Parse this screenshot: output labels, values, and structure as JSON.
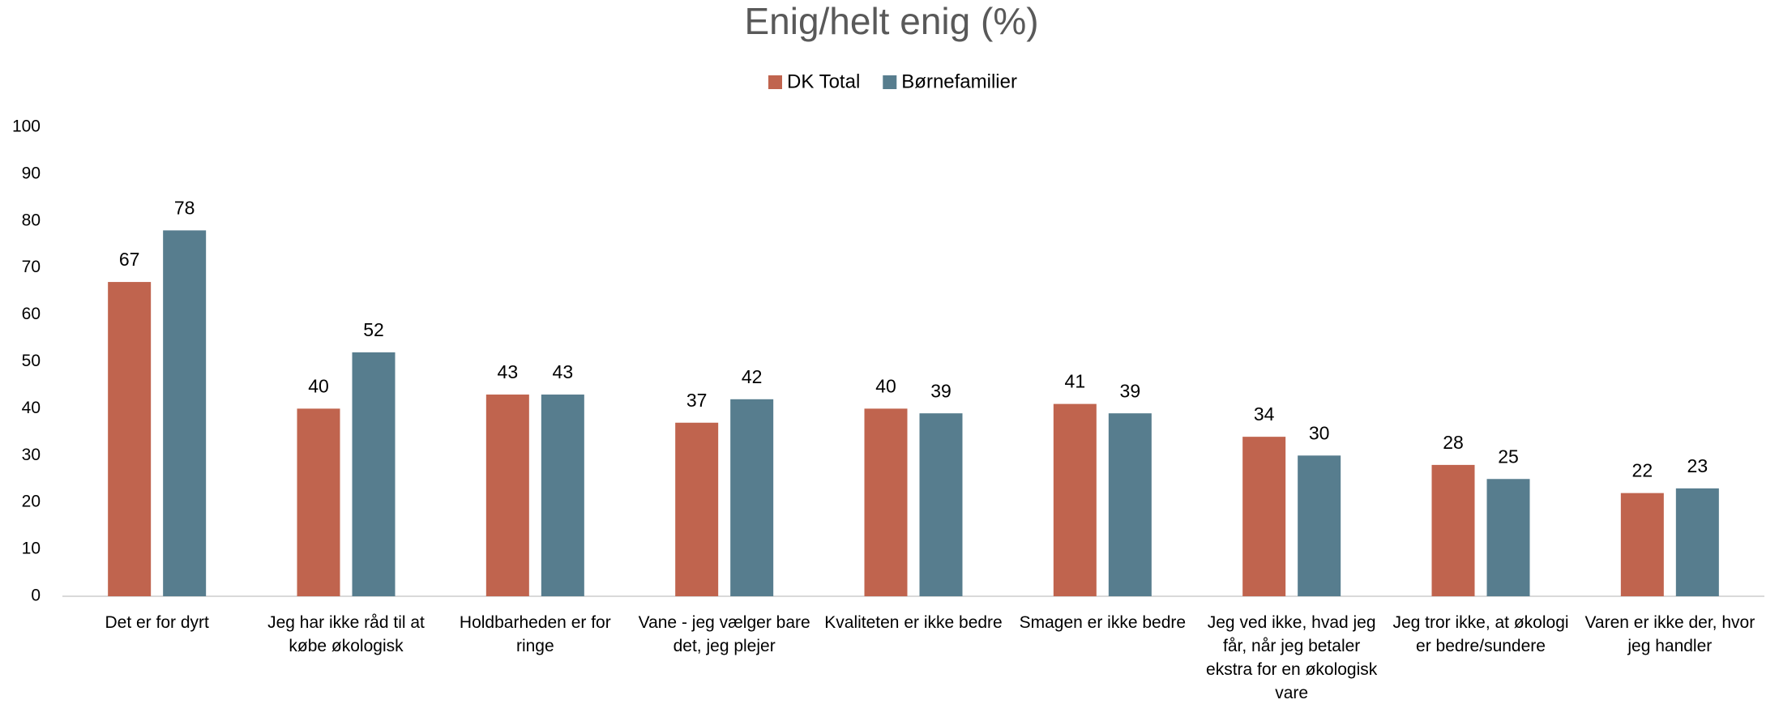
{
  "chart_data": {
    "type": "bar",
    "title": "Enig/helt enig (%)",
    "categories": [
      "Det er for dyrt",
      "Jeg har ikke råd til at købe økologisk",
      "Holdbarheden er for ringe",
      "Vane - jeg vælger bare det, jeg plejer",
      "Kvaliteten er ikke bedre",
      "Smagen er ikke bedre",
      "Jeg ved ikke, hvad jeg får, når jeg betaler ekstra for en økologisk vare",
      "Jeg tror ikke, at økologi er bedre/sundere",
      "Varen er ikke der, hvor jeg handler"
    ],
    "series": [
      {
        "name": "DK Total",
        "color": "#c0644e",
        "values": [
          67,
          40,
          43,
          37,
          40,
          41,
          34,
          28,
          22
        ]
      },
      {
        "name": "Børnefamilier",
        "color": "#577d8e",
        "values": [
          78,
          52,
          43,
          42,
          39,
          39,
          30,
          25,
          23
        ]
      }
    ],
    "ylim": [
      0,
      100
    ],
    "yticks": [
      0,
      10,
      20,
      30,
      40,
      50,
      60,
      70,
      80,
      90,
      100
    ],
    "grid": false,
    "legend": "top"
  }
}
